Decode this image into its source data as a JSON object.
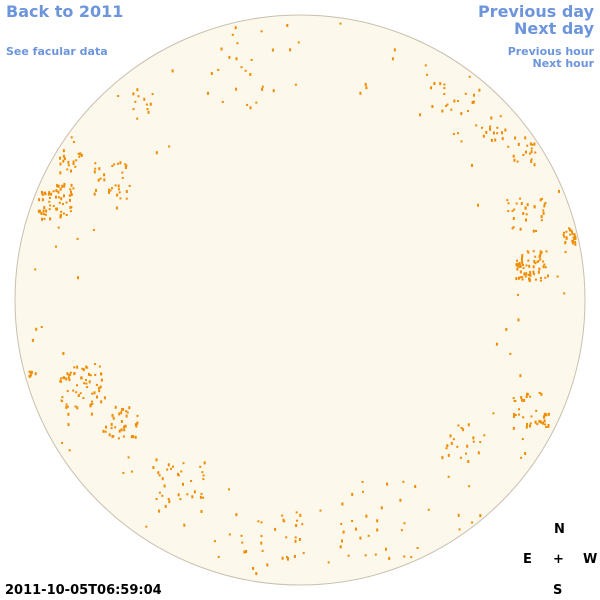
{
  "links": {
    "back": "Back to 2011",
    "facular": "See facular data",
    "previous_day": "Previous day",
    "next_day": "Next day",
    "previous_hour": "Previous hour",
    "next_hour": "Next hour"
  },
  "timestamp": "2011-10-05T06:59:04",
  "compass": {
    "north": "N",
    "east": "E",
    "center": "+",
    "west": "W",
    "south": "S"
  }
}
